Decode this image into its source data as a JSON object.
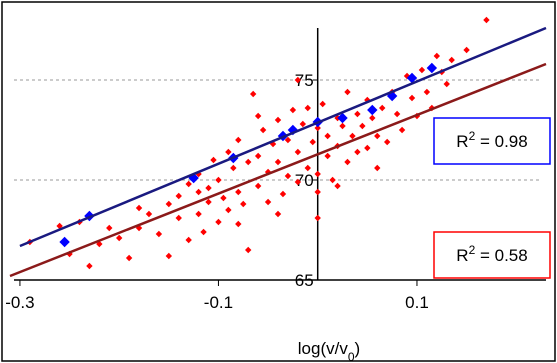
{
  "chart_data": {
    "type": "scatter",
    "title": "",
    "xlabel": "log(v/v₀)",
    "xlabel_parts": {
      "main": "log(v/v",
      "sub": "0",
      "close": ")"
    },
    "ylabel": "",
    "xlim": [
      -0.31,
      0.23
    ],
    "ylim": [
      65,
      78.5
    ],
    "x_axis_at_y": 65,
    "y_axis_at_x": 0,
    "x_ticks": [
      {
        "value": -0.3,
        "label": "-0.3"
      },
      {
        "value": -0.1,
        "label": "-0.1"
      },
      {
        "value": 0.1,
        "label": "0.1"
      }
    ],
    "y_ticks": [
      {
        "value": 65,
        "label": "65"
      },
      {
        "value": 70,
        "label": "70"
      },
      {
        "value": 75,
        "label": "75"
      }
    ],
    "gridlines_y": [
      70,
      75
    ],
    "grid": "dashed horizontal",
    "series": [
      {
        "color": "#ff0000",
        "marker": "diamond",
        "points": [
          [
            -0.29,
            66.9
          ],
          [
            -0.26,
            67.7
          ],
          [
            -0.25,
            66.3
          ],
          [
            -0.24,
            67.9
          ],
          [
            -0.23,
            65.7
          ],
          [
            -0.22,
            66.8
          ],
          [
            -0.21,
            67.6
          ],
          [
            -0.2,
            67.1
          ],
          [
            -0.19,
            66.1
          ],
          [
            -0.18,
            67.6
          ],
          [
            -0.17,
            68.3
          ],
          [
            -0.16,
            67.3
          ],
          [
            -0.15,
            68.8
          ],
          [
            -0.15,
            66.2
          ],
          [
            -0.14,
            69.2
          ],
          [
            -0.14,
            68.1
          ],
          [
            -0.13,
            67.0
          ],
          [
            -0.13,
            69.8
          ],
          [
            -0.12,
            68.3
          ],
          [
            -0.12,
            70.3
          ],
          [
            -0.115,
            67.4
          ],
          [
            -0.11,
            69.6
          ],
          [
            -0.11,
            68.9
          ],
          [
            -0.105,
            71.0
          ],
          [
            -0.1,
            67.9
          ],
          [
            -0.1,
            70.0
          ],
          [
            -0.095,
            69.1
          ],
          [
            -0.09,
            71.4
          ],
          [
            -0.09,
            68.5
          ],
          [
            -0.085,
            70.6
          ],
          [
            -0.08,
            69.4
          ],
          [
            -0.08,
            72.0
          ],
          [
            -0.075,
            68.8
          ],
          [
            -0.07,
            70.9
          ],
          [
            -0.07,
            66.5
          ],
          [
            -0.065,
            74.3
          ],
          [
            -0.06,
            71.2
          ],
          [
            -0.06,
            69.7
          ],
          [
            -0.055,
            72.5
          ],
          [
            -0.05,
            70.4
          ],
          [
            -0.05,
            68.9
          ],
          [
            -0.045,
            71.8
          ],
          [
            -0.04,
            73.0
          ],
          [
            -0.04,
            70.9
          ],
          [
            -0.035,
            69.3
          ],
          [
            -0.03,
            72.0
          ],
          [
            -0.03,
            70.2
          ],
          [
            -0.025,
            73.5
          ],
          [
            -0.02,
            71.4
          ],
          [
            -0.02,
            69.9
          ],
          [
            -0.015,
            72.8
          ],
          [
            -0.01,
            70.6
          ],
          [
            -0.01,
            73.6
          ],
          [
            -0.005,
            71.9
          ],
          [
            0.0,
            70.3
          ],
          [
            0.0,
            72.6
          ],
          [
            0.0,
            69.4
          ],
          [
            0.005,
            73.8
          ],
          [
            0.01,
            71.2
          ],
          [
            0.01,
            72.2
          ],
          [
            0.015,
            70.0
          ],
          [
            0.02,
            73.1
          ],
          [
            0.02,
            71.7
          ],
          [
            0.025,
            72.7
          ],
          [
            0.03,
            70.9
          ],
          [
            0.03,
            74.4
          ],
          [
            0.035,
            72.2
          ],
          [
            0.04,
            71.4
          ],
          [
            0.04,
            73.3
          ],
          [
            0.045,
            72.7
          ],
          [
            0.05,
            71.6
          ],
          [
            0.05,
            74.0
          ],
          [
            0.055,
            73.1
          ],
          [
            0.06,
            72.2
          ],
          [
            0.065,
            73.6
          ],
          [
            0.07,
            71.9
          ],
          [
            0.075,
            74.4
          ],
          [
            0.08,
            73.3
          ],
          [
            0.085,
            72.5
          ],
          [
            0.09,
            75.2
          ],
          [
            0.095,
            74.1
          ],
          [
            0.1,
            73.2
          ],
          [
            0.105,
            75.5
          ],
          [
            0.11,
            74.4
          ],
          [
            0.115,
            73.6
          ],
          [
            0.12,
            76.2
          ],
          [
            0.125,
            75.4
          ],
          [
            0.13,
            74.8
          ],
          [
            0.135,
            76.0
          ],
          [
            0.15,
            76.5
          ],
          [
            0.17,
            78.0
          ],
          [
            -0.18,
            68.6
          ],
          [
            -0.08,
            67.8
          ],
          [
            -0.04,
            68.3
          ],
          [
            0.0,
            68.1
          ],
          [
            -0.12,
            69.4
          ],
          [
            -0.02,
            75.0
          ],
          [
            0.06,
            70.6
          ],
          [
            -0.06,
            73.2
          ],
          [
            0.02,
            69.7
          ]
        ]
      },
      {
        "color": "#0000ff",
        "marker": "diamond",
        "points": [
          [
            -0.255,
            66.9
          ],
          [
            -0.23,
            68.2
          ],
          [
            -0.125,
            70.1
          ],
          [
            -0.085,
            71.1
          ],
          [
            -0.035,
            72.2
          ],
          [
            -0.025,
            72.5
          ],
          [
            0.0,
            72.9
          ],
          [
            0.025,
            73.1
          ],
          [
            0.055,
            73.5
          ],
          [
            0.075,
            74.2
          ],
          [
            0.095,
            75.1
          ],
          [
            0.115,
            75.6
          ]
        ]
      }
    ],
    "trendlines": [
      {
        "color": "#1a1a80",
        "from": [
          -0.3,
          66.7
        ],
        "to": [
          0.23,
          77.6
        ]
      },
      {
        "color": "#8b1a1a",
        "from": [
          -0.31,
          65.2
        ],
        "to": [
          0.23,
          75.8
        ]
      }
    ],
    "annotations": [
      {
        "text": "R² = 0.98",
        "base": "R",
        "sup": "2",
        "rest": " = 0.98",
        "box_color": "#0000ff"
      },
      {
        "text": "R² = 0.58",
        "base": "R",
        "sup": "2",
        "rest": " = 0.58",
        "box_color": "#ff0000"
      }
    ]
  }
}
